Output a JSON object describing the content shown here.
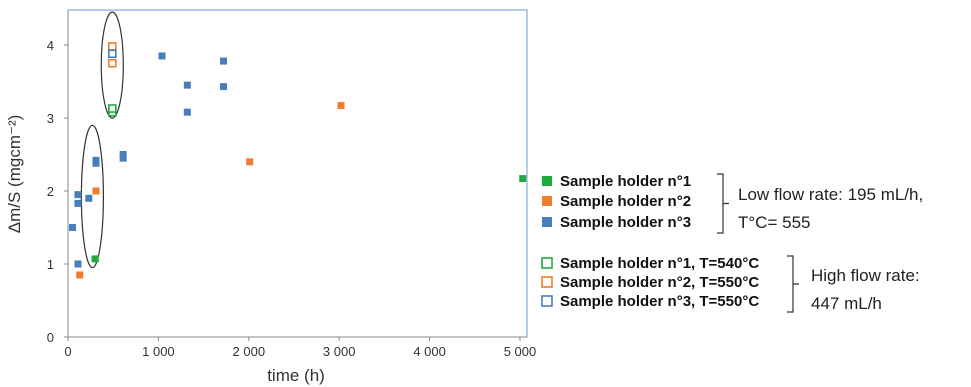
{
  "chart_data": {
    "type": "scatter",
    "title": "",
    "xlabel": "time  (h)",
    "ylabel": "Δm/S (mgcm⁻²)",
    "xlim": [
      0,
      5000
    ],
    "ylim": [
      0,
      4.4
    ],
    "xticks": [
      0,
      1000,
      2000,
      3000,
      4000,
      5000
    ],
    "xtick_labels": [
      "0",
      "1 000",
      "2 000",
      "3 000",
      "4 000",
      "5 000"
    ],
    "yticks": [
      0,
      1,
      2,
      3,
      4
    ],
    "ytick_labels": [
      "0",
      "1",
      "2",
      "3",
      "4"
    ],
    "grid": false,
    "legend_position": "right",
    "series": [
      {
        "name": "Sample holder n°1",
        "marker": "filled-square",
        "color": "#1faa3c",
        "x": [
          300,
          5030
        ],
        "y": [
          1.07,
          2.17
        ]
      },
      {
        "name": "Sample holder n°2",
        "marker": "filled-square",
        "color": "#ee7d2f",
        "x": [
          130,
          310,
          2010,
          3020
        ],
        "y": [
          0.85,
          2.0,
          2.4,
          3.17
        ]
      },
      {
        "name": "Sample holder n°3",
        "marker": "filled-square",
        "color": "#4a7ebb",
        "x": [
          50,
          110,
          110,
          110,
          230,
          310,
          310,
          610,
          610,
          1040,
          1320,
          1320,
          1720,
          1720
        ],
        "y": [
          1.5,
          1.0,
          1.83,
          1.95,
          1.9,
          2.38,
          2.42,
          2.45,
          2.5,
          3.85,
          3.08,
          3.45,
          3.43,
          3.78
        ]
      },
      {
        "name": "Sample holder n°1, T=540°C",
        "marker": "open-square",
        "color": "#1faa3c",
        "x": [
          490,
          490
        ],
        "y": [
          3.08,
          3.13
        ]
      },
      {
        "name": "Sample holder n°2, T=550°C",
        "marker": "open-square",
        "color": "#ee7d2f",
        "x": [
          490,
          490,
          490
        ],
        "y": [
          3.75,
          3.9,
          3.98
        ]
      },
      {
        "name": "Sample holder n°3, T=550°C",
        "marker": "open-square",
        "color": "#4a7ebb",
        "x": [
          490
        ],
        "y": [
          3.88
        ]
      }
    ],
    "annotations": [
      {
        "kind": "ellipse",
        "around_x": 490,
        "around_y_range": [
          3.0,
          4.45
        ]
      },
      {
        "kind": "ellipse",
        "around_x": 270,
        "around_y_range": [
          0.95,
          2.9
        ]
      }
    ],
    "legend_groups": [
      {
        "label": "Low flow rate: 195 mL/h,",
        "label_line2": "T°C= 555",
        "entries": [
          0,
          1,
          2
        ]
      },
      {
        "label": "High flow rate:",
        "label_line2": "447 mL/h",
        "entries": [
          3,
          4,
          5
        ]
      }
    ]
  }
}
